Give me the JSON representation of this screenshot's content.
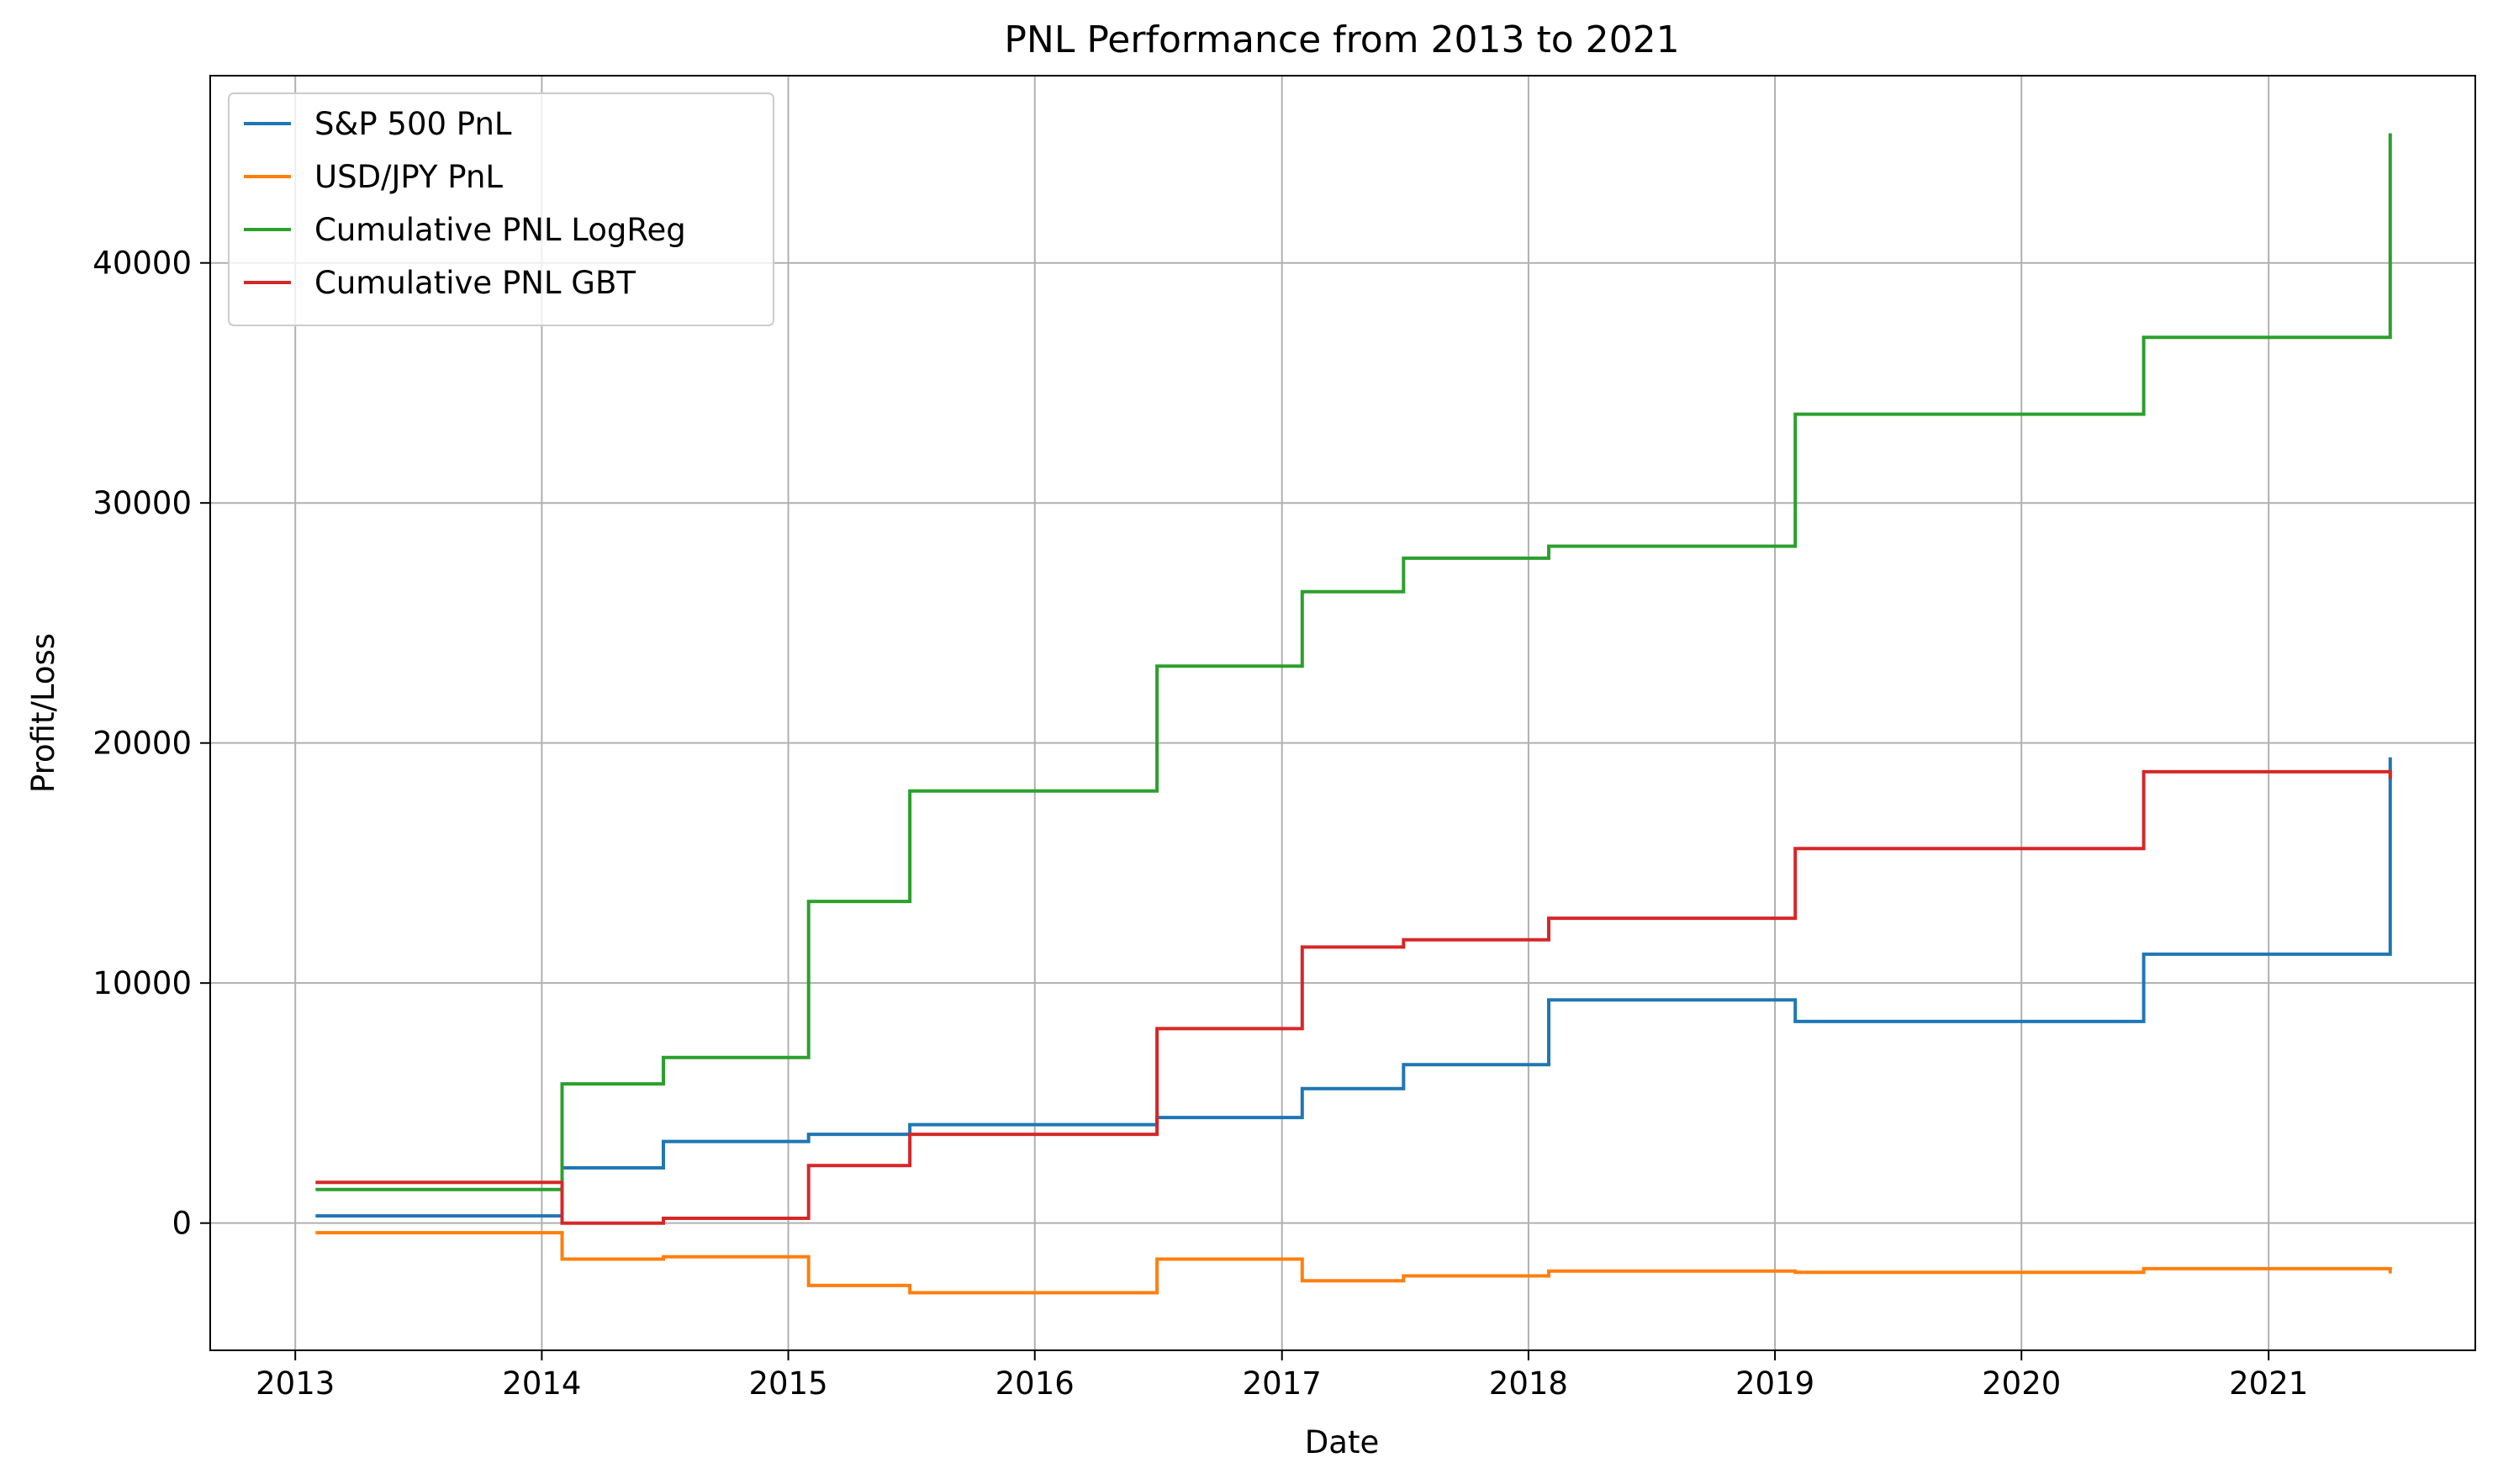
{
  "chart_data": {
    "type": "line",
    "title": "PNL Performance from 2013 to 2021",
    "xlabel": "Date",
    "ylabel": "Profit/Loss",
    "x_ticks": [
      "2013",
      "2014",
      "2015",
      "2016",
      "2017",
      "2018",
      "2019",
      "2020",
      "2021"
    ],
    "y_ticks": [
      "0",
      "10000",
      "20000",
      "30000",
      "40000"
    ],
    "xlim": [
      "2012-08-28",
      "2021-11-03"
    ],
    "ylim": [
      -5300,
      47800
    ],
    "grid": true,
    "legend_position": "top-left",
    "step": "post",
    "dates": [
      "2013-01-31",
      "2014-01-31",
      "2014-06-30",
      "2015-01-31",
      "2015-06-30",
      "2016-06-30",
      "2017-01-31",
      "2017-06-30",
      "2018-01-31",
      "2019-01-31",
      "2020-06-30",
      "2021-06-30"
    ],
    "series": [
      {
        "name": "S&P 500 PnL",
        "color": "#1f77b4",
        "values": [
          300,
          2300,
          3400,
          3700,
          4100,
          4400,
          5600,
          6600,
          9300,
          8400,
          11200,
          19400
        ]
      },
      {
        "name": "USD/JPY PnL",
        "color": "#ff7f0e",
        "values": [
          -400,
          -1500,
          -1400,
          -2600,
          -2900,
          -1500,
          -2400,
          -2200,
          -2000,
          -2050,
          -1900,
          -2100
        ]
      },
      {
        "name": "Cumulative PNL LogReg",
        "color": "#2ca02c",
        "values": [
          1400,
          5800,
          6900,
          13400,
          18000,
          23200,
          26300,
          27700,
          28200,
          33700,
          36900,
          45400
        ]
      },
      {
        "name": "Cumulative PNL GBT",
        "color": "#d62728",
        "values": [
          1700,
          0,
          200,
          2400,
          3700,
          8100,
          11500,
          11800,
          12700,
          15600,
          18800,
          18500
        ]
      }
    ]
  }
}
